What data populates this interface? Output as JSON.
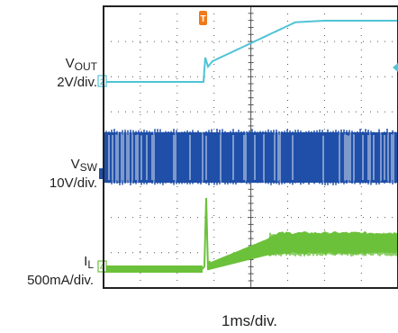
{
  "chart_data": {
    "type": "line",
    "grid": true,
    "timebase": "1ms/div.",
    "trigger_marker": "T",
    "channels": [
      {
        "id": "2",
        "name": "V",
        "sub": "OUT",
        "scale": "2V/div.",
        "color": "#4fc3d6",
        "marker": "2"
      },
      {
        "id": "1",
        "name": "V",
        "sub": "SW",
        "scale": "10V/div.",
        "color": "#1f4fa8",
        "marker": "1"
      },
      {
        "id": "4",
        "name": "I",
        "sub": "L",
        "scale": "500mA/div.",
        "color": "#6cc13a",
        "marker": "4"
      }
    ]
  }
}
